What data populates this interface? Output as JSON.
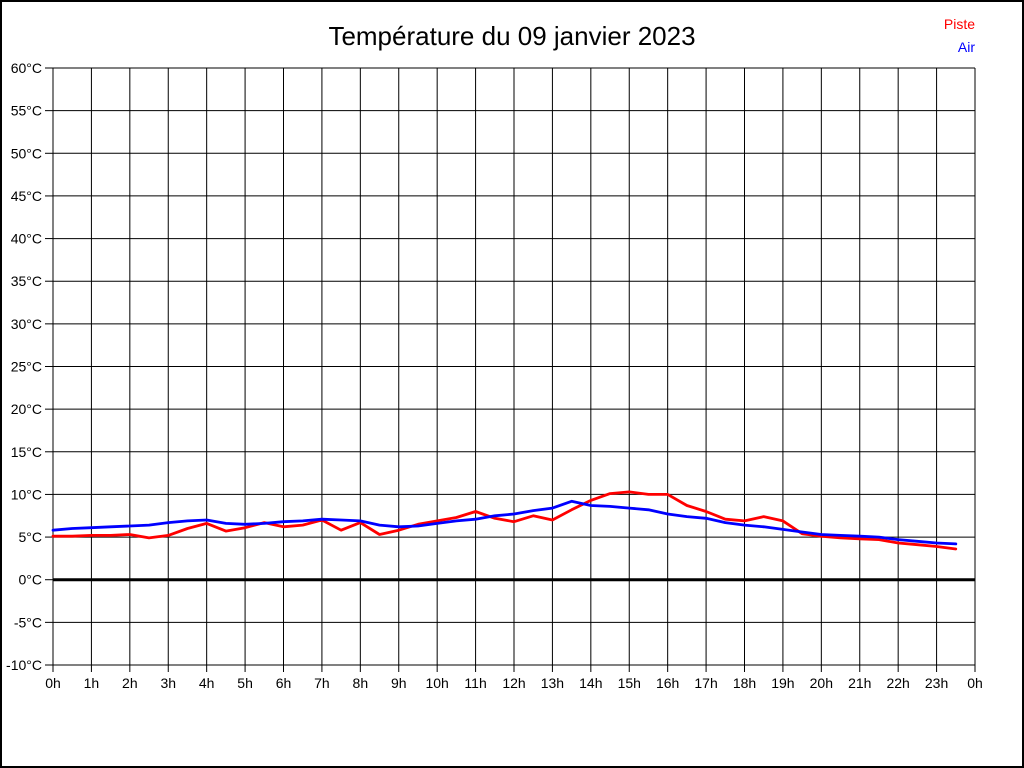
{
  "chart_data": {
    "type": "line",
    "title": "Température du 09 janvier 2023",
    "xlabel": "",
    "ylabel": "",
    "xlim": [
      0,
      24
    ],
    "ylim": [
      -10,
      60
    ],
    "grid": true,
    "zero_line": true,
    "legend_position": "top-right",
    "x_axis": {
      "tick_values": [
        0,
        1,
        2,
        3,
        4,
        5,
        6,
        7,
        8,
        9,
        10,
        11,
        12,
        13,
        14,
        15,
        16,
        17,
        18,
        19,
        20,
        21,
        22,
        23,
        24
      ],
      "tick_labels": [
        "0h",
        "1h",
        "2h",
        "3h",
        "4h",
        "5h",
        "6h",
        "7h",
        "8h",
        "9h",
        "10h",
        "11h",
        "12h",
        "13h",
        "14h",
        "15h",
        "16h",
        "17h",
        "18h",
        "19h",
        "20h",
        "21h",
        "22h",
        "23h",
        "0h"
      ]
    },
    "y_axis": {
      "tick_values": [
        60,
        55,
        50,
        45,
        40,
        35,
        30,
        25,
        20,
        15,
        10,
        5,
        0,
        -5,
        -10
      ],
      "tick_labels": [
        "60°C",
        "55°C",
        "50°C",
        "45°C",
        "40°C",
        "35°C",
        "30°C",
        "25°C",
        "20°C",
        "15°C",
        "10°C",
        "5°C",
        "0°C",
        "-5°C",
        "-10°C"
      ]
    },
    "x": [
      0,
      0.5,
      1,
      1.5,
      2,
      2.5,
      3,
      3.5,
      4,
      4.5,
      5,
      5.5,
      6,
      6.5,
      7,
      7.5,
      8,
      8.5,
      9,
      9.5,
      10,
      10.5,
      11,
      11.5,
      12,
      12.5,
      13,
      13.5,
      14,
      14.5,
      15,
      15.5,
      16,
      16.5,
      17,
      17.5,
      18,
      18.5,
      19,
      19.5,
      20,
      20.5,
      21,
      21.5,
      22,
      22.5,
      23,
      23.5
    ],
    "series": [
      {
        "name": "Piste",
        "color": "#ff0000",
        "values": [
          5.1,
          5.1,
          5.2,
          5.2,
          5.3,
          4.9,
          5.2,
          6.0,
          6.6,
          5.7,
          6.1,
          6.7,
          6.2,
          6.4,
          7.0,
          5.8,
          6.7,
          5.3,
          5.8,
          6.5,
          6.9,
          7.3,
          8.0,
          7.2,
          6.8,
          7.5,
          7.0,
          8.2,
          9.3,
          10.1,
          10.3,
          10.0,
          10.0,
          8.7,
          8.0,
          7.1,
          6.9,
          7.4,
          6.9,
          5.4,
          5.1,
          4.9,
          4.8,
          4.7,
          4.3,
          4.1,
          3.9,
          3.6
        ]
      },
      {
        "name": "Air",
        "color": "#0000ff",
        "values": [
          5.8,
          6.0,
          6.1,
          6.2,
          6.3,
          6.4,
          6.7,
          6.9,
          7.0,
          6.6,
          6.5,
          6.6,
          6.8,
          6.9,
          7.1,
          7.0,
          6.9,
          6.4,
          6.2,
          6.3,
          6.6,
          6.9,
          7.1,
          7.5,
          7.7,
          8.1,
          8.4,
          9.2,
          8.7,
          8.6,
          8.4,
          8.2,
          7.7,
          7.4,
          7.2,
          6.7,
          6.4,
          6.2,
          5.9,
          5.6,
          5.3,
          5.2,
          5.1,
          5.0,
          4.7,
          4.5,
          4.3,
          4.2
        ]
      }
    ],
    "axis_color": "#000000",
    "grid_color": "#000000",
    "zero_line_color": "#000000"
  }
}
